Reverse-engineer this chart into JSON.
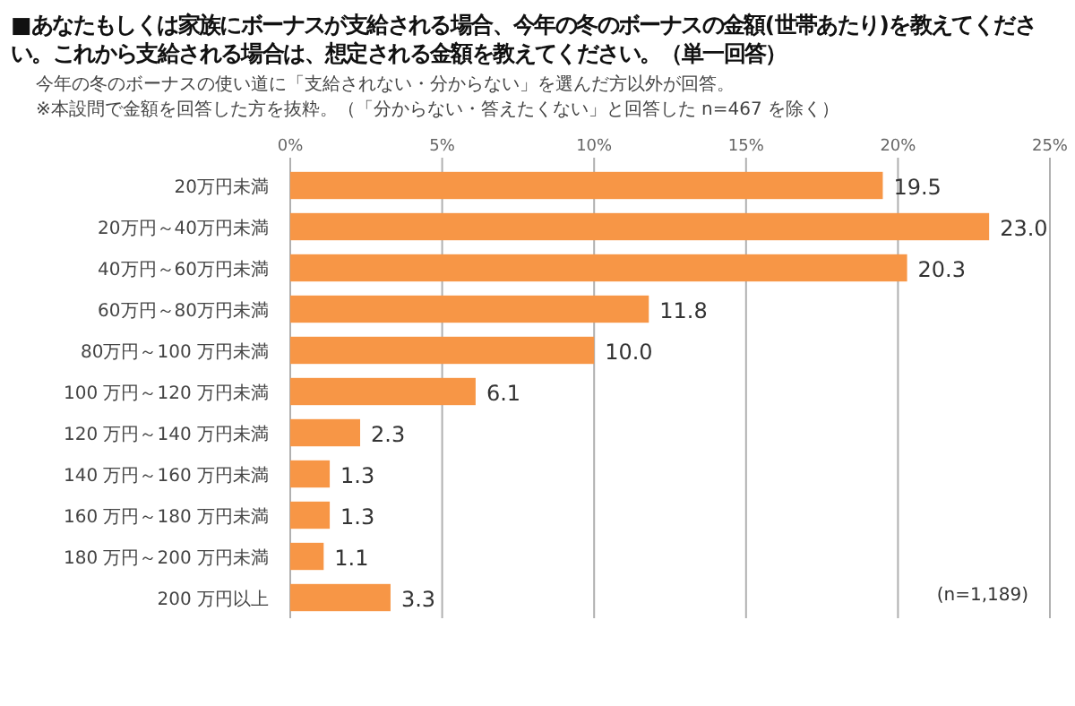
{
  "chart_data": {
    "type": "bar",
    "orientation": "horizontal",
    "title": "■あなたもしくは家族にボーナスが支給される場合、今年の冬のボーナスの金額(世帯あたり)を教えてください。これから支給される場合は、想定される金額を教えてください。（単一回答）",
    "subtitle": "今年の冬のボーナスの使い道に「支給されない・分からない」を選んだ方以外が回答。",
    "annotations": [
      "※本設問で金額を回答した方を抜粋。（「分からない・答えたくない」と回答した n=467 を除く）",
      "(n=1,189)"
    ],
    "categories": [
      "20万円未満",
      "20万円～40万円未満",
      "40万円～60万円未満",
      "60万円～80万円未満",
      "80万円～100 万円未満",
      "100 万円～120 万円未満",
      "120 万円～140 万円未満",
      "140 万円～160 万円未満",
      "160 万円～180 万円未満",
      "180 万円～200 万円未満",
      "200 万円以上"
    ],
    "values": [
      19.5,
      23.0,
      20.3,
      11.8,
      10.0,
      6.1,
      2.3,
      1.3,
      1.3,
      1.1,
      3.3
    ],
    "value_labels": [
      "19.5",
      "23.0",
      "20.3",
      "11.8",
      "10.0",
      "6.1",
      "2.3",
      "1.3",
      "1.3",
      "1.1",
      "3.3"
    ],
    "color": "#f79646",
    "xlim": [
      0,
      25
    ],
    "xticks": [
      {
        "value": 0,
        "label": "0%"
      },
      {
        "value": 5,
        "label": "5%"
      },
      {
        "value": 10,
        "label": "10%"
      },
      {
        "value": 15,
        "label": "15%"
      },
      {
        "value": 20,
        "label": "20%"
      },
      {
        "value": 25,
        "label": "25%"
      }
    ],
    "grid": "x"
  }
}
